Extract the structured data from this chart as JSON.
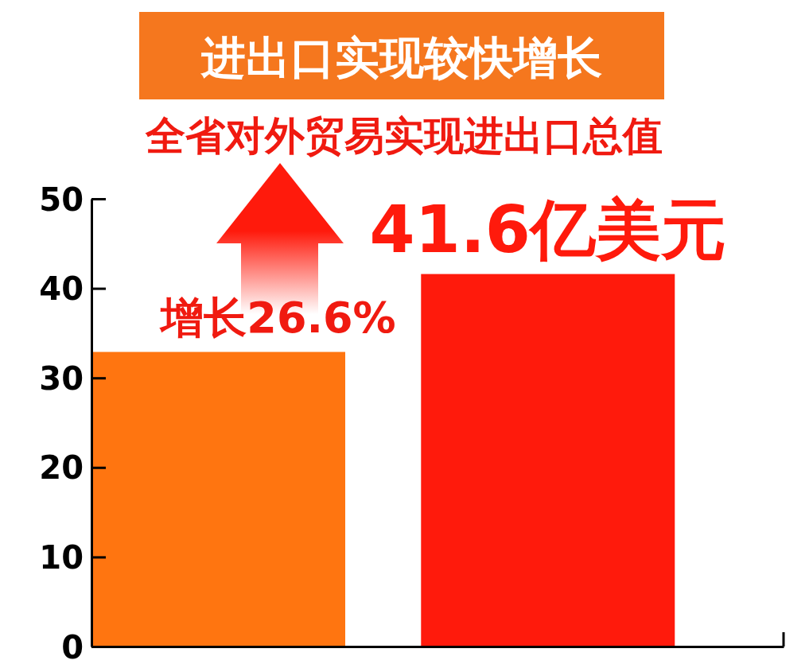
{
  "chart_data": {
    "type": "bar",
    "title": "进出口实现较快增长",
    "subtitle": "全省对外贸易实现进出口总值",
    "categories": [
      null,
      null
    ],
    "values": [
      32.9,
      41.6
    ],
    "colors": [
      "#ff7510",
      "#ff1a0c"
    ],
    "value_labels": [
      null,
      "41.6亿美元"
    ],
    "annotations": [
      "增长26.6%"
    ],
    "ylim": [
      0,
      50
    ],
    "yticks": [
      0,
      10,
      20,
      30,
      40,
      50
    ]
  }
}
